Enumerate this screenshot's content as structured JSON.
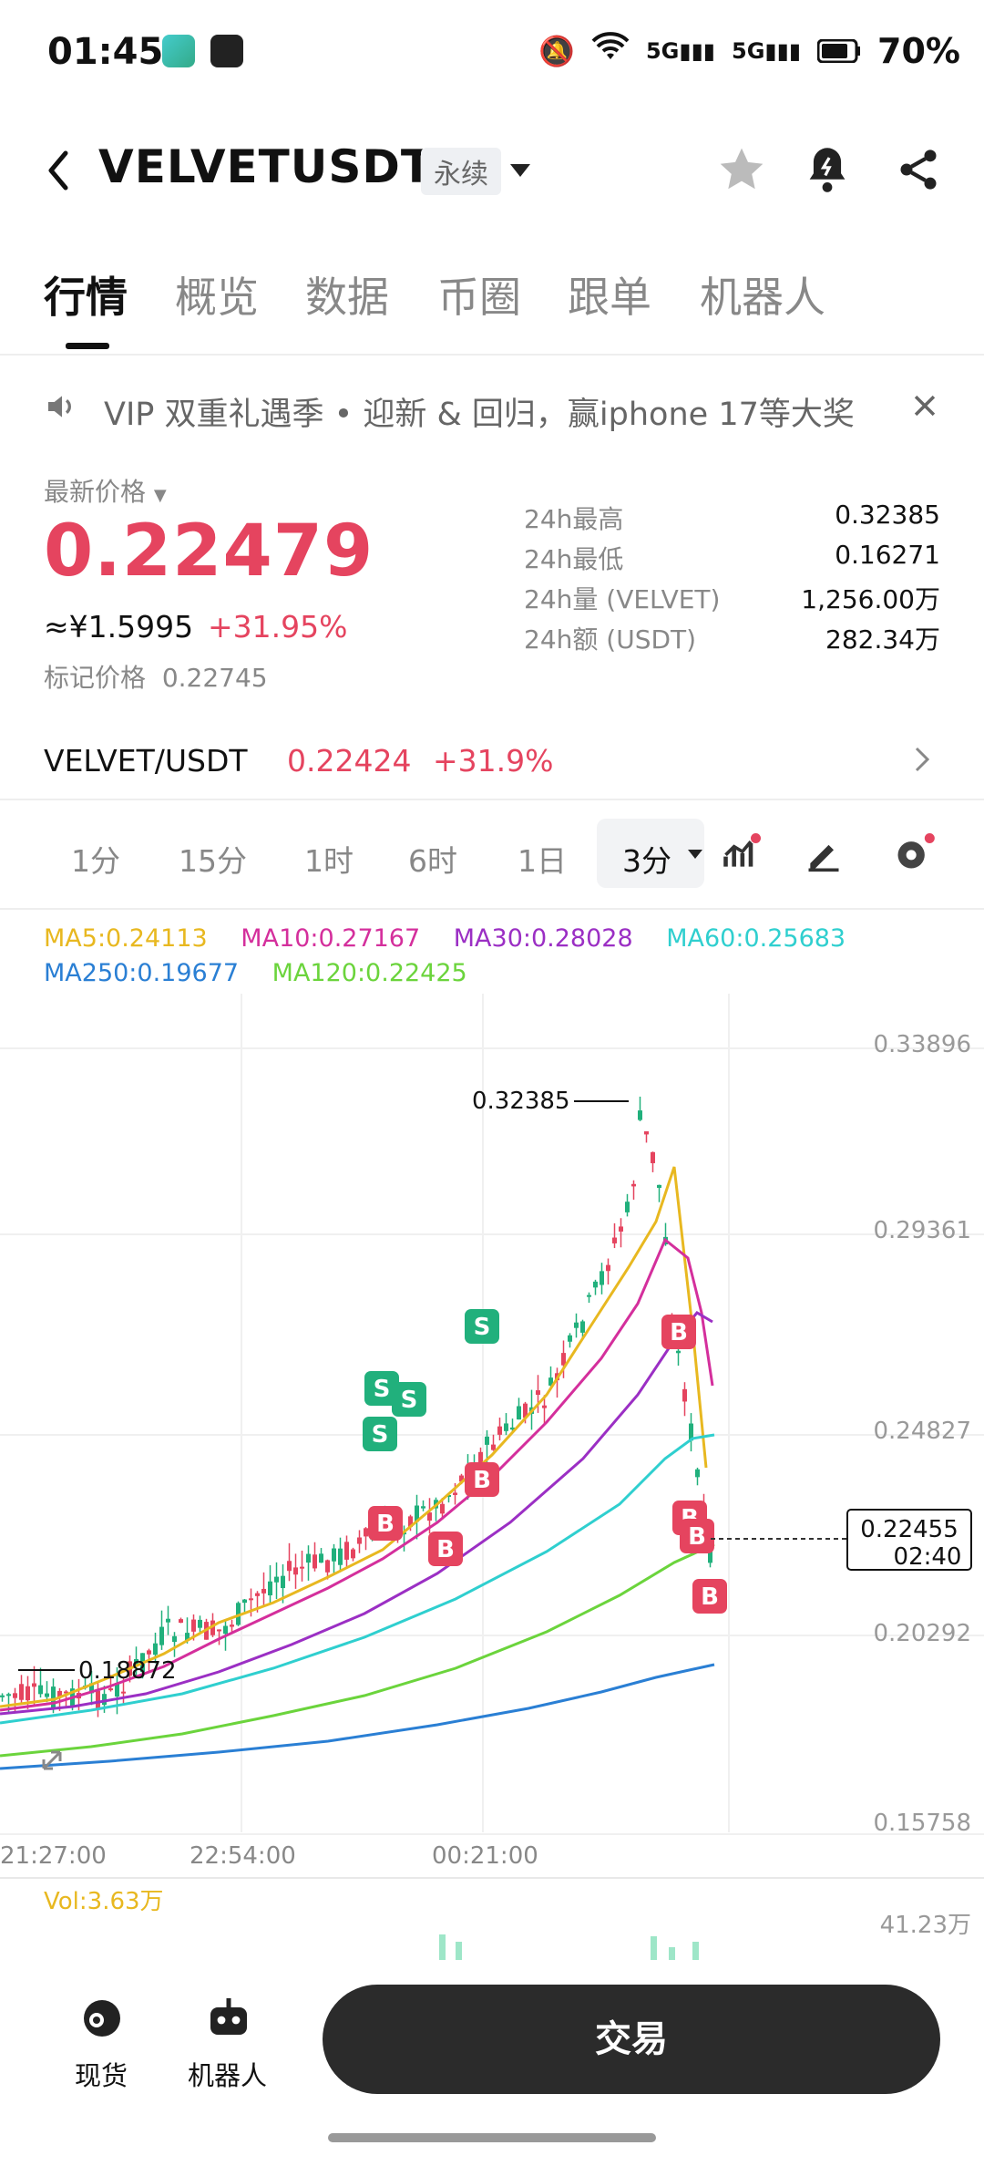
{
  "status": {
    "time": "01:45",
    "battery": "70%"
  },
  "header": {
    "back_icon": "chevron-left-icon",
    "symbol": "VELVETUSDT",
    "contract_type": "永续"
  },
  "tabs": [
    "行情",
    "概览",
    "数据",
    "币圈",
    "跟单",
    "机器人"
  ],
  "promo": {
    "text": "VIP 双重礼遇季 • 迎新 & 回归，赢iphone 17等大奖"
  },
  "price": {
    "label": "最新价格",
    "last": "0.22479",
    "cny": "≈¥1.5995",
    "change": "+31.95%",
    "mark_label": "标记价格",
    "mark": "0.22745"
  },
  "stats": [
    {
      "k": "24h最高",
      "v": "0.32385"
    },
    {
      "k": "24h最低",
      "v": "0.16271"
    },
    {
      "k": "24h量 (VELVET)",
      "v": "1,256.00万"
    },
    {
      "k": "24h额 (USDT)",
      "v": "282.34万"
    }
  ],
  "spot_pair": {
    "name": "VELVET/USDT",
    "price": "0.22424",
    "change": "+31.9%"
  },
  "intervals": [
    "1分",
    "15分",
    "1时",
    "6时",
    "1日"
  ],
  "active_interval": "3分",
  "ma": [
    {
      "label": "MA5:0.24113",
      "color": "#e8b820"
    },
    {
      "label": "MA10:0.27167",
      "color": "#d42f9c"
    },
    {
      "label": "MA30:0.28028",
      "color": "#9b2fc4"
    },
    {
      "label": "MA60:0.25683",
      "color": "#2fcfcf"
    },
    {
      "label": "MA250:0.19677",
      "color": "#2a7fd4"
    },
    {
      "label": "MA120:0.22425",
      "color": "#6bd43c"
    }
  ],
  "chart": {
    "y_ticks": [
      "0.33896",
      "0.29361",
      "0.24827",
      "0.20292",
      "0.15758"
    ],
    "x_ticks": [
      "21:27:00",
      "22:54:00",
      "00:21:00"
    ],
    "high_label": "0.32385",
    "low_label": "0.18872",
    "current_price": "0.22455",
    "countdown": "02:40",
    "vol_label": "Vol:3.63万",
    "vol_max": "41.23万"
  },
  "bottom": {
    "spot": "现货",
    "robot": "机器人",
    "trade": "交易"
  },
  "colors": {
    "up": "#e5445f",
    "down": "#21b07c"
  }
}
